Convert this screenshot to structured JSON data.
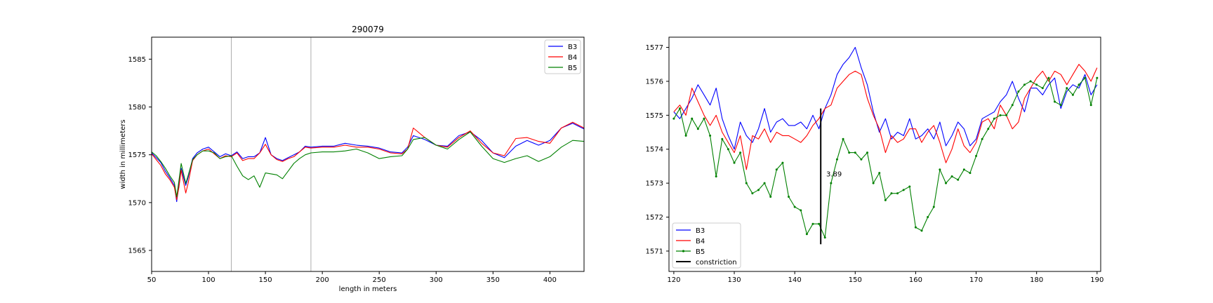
{
  "chart_data": [
    {
      "type": "line",
      "title": "290079",
      "xlabel": "length in meters",
      "ylabel": "width in millimeters",
      "xlim": [
        50,
        430
      ],
      "ylim": [
        1562.8,
        1587.3
      ],
      "xticks": [
        50,
        100,
        150,
        200,
        250,
        300,
        350,
        400
      ],
      "yticks": [
        1565,
        1570,
        1575,
        1580,
        1585
      ],
      "vlines": [
        120,
        190
      ],
      "legend_position": "upper right",
      "grid": false,
      "x": [
        50,
        54,
        58,
        62,
        66,
        70,
        72,
        74,
        76,
        80,
        82,
        86,
        90,
        95,
        100,
        105,
        110,
        115,
        120,
        125,
        130,
        135,
        140,
        145,
        150,
        155,
        160,
        165,
        170,
        175,
        180,
        185,
        190,
        200,
        210,
        220,
        230,
        240,
        250,
        260,
        270,
        275,
        280,
        290,
        300,
        310,
        320,
        330,
        340,
        350,
        360,
        370,
        380,
        390,
        400,
        410,
        420,
        430
      ],
      "series": [
        {
          "name": "B3",
          "color": "#0000ff",
          "marker": false,
          "values": [
            1575.2,
            1574.7,
            1574.2,
            1573.3,
            1572.6,
            1571.8,
            1570.1,
            1571.9,
            1573.6,
            1571.8,
            1572.6,
            1574.6,
            1575.2,
            1575.6,
            1575.8,
            1575.3,
            1574.8,
            1575.1,
            1574.9,
            1575.3,
            1574.6,
            1574.8,
            1574.8,
            1575.2,
            1576.8,
            1575.0,
            1574.6,
            1574.4,
            1574.7,
            1575.0,
            1575.3,
            1575.9,
            1575.8,
            1575.9,
            1575.9,
            1576.2,
            1576.0,
            1575.9,
            1575.7,
            1575.3,
            1575.2,
            1575.8,
            1577.0,
            1576.6,
            1576.0,
            1575.9,
            1577.0,
            1577.4,
            1576.5,
            1575.2,
            1574.7,
            1575.9,
            1576.5,
            1576.0,
            1576.5,
            1577.8,
            1578.3,
            1577.7
          ]
        },
        {
          "name": "B4",
          "color": "#ff0000",
          "marker": false,
          "values": [
            1575.1,
            1574.5,
            1573.9,
            1573.0,
            1572.4,
            1571.6,
            1570.3,
            1571.6,
            1573.4,
            1571.0,
            1572.0,
            1574.4,
            1575.0,
            1575.4,
            1575.6,
            1575.1,
            1574.6,
            1574.9,
            1574.8,
            1575.2,
            1574.4,
            1574.6,
            1574.6,
            1575.2,
            1576.1,
            1575.0,
            1574.5,
            1574.3,
            1574.6,
            1574.8,
            1575.3,
            1575.8,
            1575.7,
            1575.8,
            1575.8,
            1576.0,
            1575.8,
            1575.8,
            1575.6,
            1575.2,
            1575.1,
            1575.6,
            1577.8,
            1576.8,
            1576.0,
            1575.8,
            1576.8,
            1577.5,
            1576.2,
            1575.2,
            1574.9,
            1576.7,
            1576.8,
            1576.4,
            1576.2,
            1577.8,
            1578.4,
            1577.8
          ]
        },
        {
          "name": "B5",
          "color": "#008000",
          "marker": false,
          "values": [
            1575.3,
            1574.9,
            1574.3,
            1573.6,
            1572.8,
            1572.1,
            1570.6,
            1572.3,
            1574.1,
            1572.0,
            1572.8,
            1574.5,
            1575.0,
            1575.4,
            1575.4,
            1575.2,
            1574.6,
            1574.8,
            1574.9,
            1573.8,
            1572.8,
            1572.4,
            1572.8,
            1571.6,
            1573.1,
            1573.0,
            1572.9,
            1572.5,
            1573.3,
            1574.1,
            1574.6,
            1575.0,
            1575.2,
            1575.3,
            1575.3,
            1575.4,
            1575.6,
            1575.2,
            1574.6,
            1574.8,
            1574.9,
            1575.6,
            1576.6,
            1576.8,
            1576.0,
            1575.6,
            1576.6,
            1577.4,
            1575.9,
            1574.6,
            1574.2,
            1574.6,
            1574.9,
            1574.3,
            1574.8,
            1575.8,
            1576.5,
            1576.4
          ]
        }
      ]
    },
    {
      "type": "line",
      "title": "",
      "xlabel": "",
      "ylabel": "",
      "xlim": [
        119.2,
        190.6
      ],
      "ylim": [
        1570.4,
        1577.3
      ],
      "xticks": [
        120,
        130,
        140,
        150,
        160,
        170,
        180,
        190
      ],
      "yticks": [
        1571,
        1572,
        1573,
        1574,
        1575,
        1576,
        1577
      ],
      "legend_position": "lower left",
      "grid": false,
      "annotation": {
        "text": "3.89",
        "x": 145.2,
        "y": 1573.2
      },
      "constriction": {
        "name": "constriction",
        "x": 144.3,
        "y1": 1571.2,
        "y2": 1575.2,
        "color": "#000000"
      },
      "x": [
        120,
        121,
        122,
        123,
        124,
        125,
        126,
        127,
        128,
        129,
        130,
        131,
        132,
        133,
        134,
        135,
        136,
        137,
        138,
        139,
        140,
        141,
        142,
        143,
        144,
        145,
        146,
        147,
        148,
        149,
        150,
        151,
        152,
        153,
        154,
        155,
        156,
        157,
        158,
        159,
        160,
        161,
        162,
        163,
        164,
        165,
        166,
        167,
        168,
        169,
        170,
        171,
        172,
        173,
        174,
        175,
        176,
        177,
        178,
        179,
        180,
        181,
        182,
        183,
        184,
        185,
        186,
        187,
        188,
        189,
        190
      ],
      "series": [
        {
          "name": "B3",
          "color": "#0000ff",
          "marker": false,
          "values": [
            1575.1,
            1574.9,
            1575.2,
            1575.5,
            1575.9,
            1575.6,
            1575.3,
            1575.8,
            1574.9,
            1574.4,
            1574.0,
            1574.8,
            1574.4,
            1574.2,
            1574.6,
            1575.2,
            1574.5,
            1574.8,
            1574.9,
            1574.7,
            1574.7,
            1574.8,
            1574.6,
            1575.0,
            1574.6,
            1575.2,
            1575.6,
            1576.2,
            1576.5,
            1576.7,
            1577.0,
            1576.4,
            1575.9,
            1575.1,
            1574.5,
            1574.9,
            1574.3,
            1574.5,
            1574.4,
            1574.9,
            1574.3,
            1574.4,
            1574.6,
            1574.3,
            1574.8,
            1574.1,
            1574.4,
            1574.8,
            1574.6,
            1574.1,
            1574.3,
            1574.9,
            1575.0,
            1575.1,
            1575.4,
            1575.6,
            1576.0,
            1575.5,
            1575.1,
            1575.8,
            1575.8,
            1575.6,
            1575.9,
            1576.1,
            1575.2,
            1575.7,
            1575.9,
            1575.8,
            1576.2,
            1575.6,
            1575.9
          ]
        },
        {
          "name": "B4",
          "color": "#ff0000",
          "marker": false,
          "values": [
            1575.1,
            1575.3,
            1575.0,
            1575.8,
            1575.4,
            1575.0,
            1574.7,
            1575.0,
            1574.5,
            1574.2,
            1573.9,
            1574.4,
            1573.4,
            1574.4,
            1574.3,
            1574.6,
            1574.2,
            1574.5,
            1574.4,
            1574.4,
            1574.3,
            1574.2,
            1574.4,
            1574.7,
            1574.9,
            1575.2,
            1575.3,
            1575.8,
            1576.0,
            1576.2,
            1576.3,
            1576.2,
            1575.5,
            1575.0,
            1574.6,
            1573.9,
            1574.4,
            1574.2,
            1574.3,
            1574.6,
            1574.6,
            1574.2,
            1574.5,
            1574.7,
            1574.2,
            1573.6,
            1574.0,
            1574.6,
            1574.1,
            1573.9,
            1574.2,
            1574.8,
            1574.9,
            1574.6,
            1575.3,
            1575.0,
            1574.6,
            1574.8,
            1575.5,
            1575.8,
            1576.1,
            1576.3,
            1576.0,
            1576.3,
            1576.2,
            1575.9,
            1576.2,
            1576.5,
            1576.3,
            1576.0,
            1576.4
          ]
        },
        {
          "name": "B5",
          "color": "#008000",
          "marker": true,
          "values": [
            1574.9,
            1575.2,
            1574.4,
            1574.9,
            1574.6,
            1574.9,
            1574.4,
            1573.2,
            1574.3,
            1574.0,
            1573.6,
            1573.9,
            1573.0,
            1572.7,
            1572.8,
            1573.0,
            1572.6,
            1573.4,
            1573.6,
            1572.6,
            1572.3,
            1572.2,
            1571.5,
            1571.8,
            1571.8,
            1571.4,
            1573.0,
            1573.7,
            1574.3,
            1573.9,
            1573.9,
            1573.7,
            1573.9,
            1573.0,
            1573.3,
            1572.5,
            1572.7,
            1572.7,
            1572.8,
            1572.9,
            1571.7,
            1571.6,
            1572.0,
            1572.3,
            1573.4,
            1573.0,
            1573.2,
            1573.1,
            1573.4,
            1573.3,
            1573.8,
            1574.3,
            1574.6,
            1574.9,
            1575.0,
            1575.0,
            1575.3,
            1575.7,
            1575.9,
            1576.0,
            1575.9,
            1575.8,
            1576.1,
            1575.4,
            1575.3,
            1575.8,
            1575.6,
            1575.9,
            1576.1,
            1575.3,
            1576.1
          ]
        }
      ]
    }
  ]
}
